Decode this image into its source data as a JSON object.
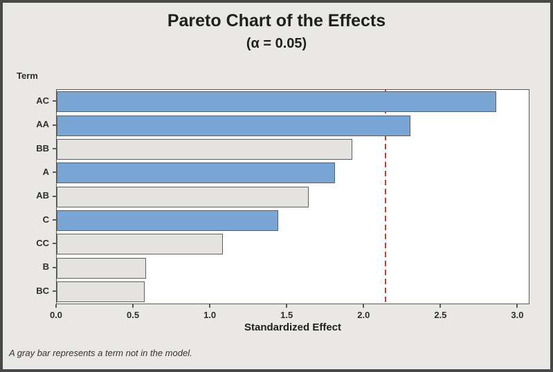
{
  "title": "Pareto Chart of the Effects",
  "subtitle": "(α = 0.05)",
  "axes": {
    "y_title": "Term",
    "x_title": "Standardized Effect"
  },
  "footnote": "A gray bar represents a term not in the model.",
  "colors": {
    "background": "#e9e8e5",
    "frame_border": "#484848",
    "plot_background": "#ffffff",
    "plot_border": "#595959",
    "bar_in_model": "#7aa6d6",
    "bar_not_in_model": "#e4e3e0",
    "bar_border": "#5e5e5e",
    "reference_line": "#d2392b",
    "text": "#212121"
  },
  "chart_data": {
    "type": "bar",
    "orientation": "horizontal",
    "title": "Pareto Chart of the Effects",
    "subtitle": "(α = 0.05)",
    "alpha": 0.05,
    "xlabel": "Standardized Effect",
    "ylabel": "Term",
    "categories": [
      "AC",
      "AA",
      "BB",
      "A",
      "AB",
      "C",
      "CC",
      "B",
      "BC"
    ],
    "values": [
      2.86,
      2.3,
      1.92,
      1.81,
      1.64,
      1.44,
      1.08,
      0.58,
      0.57
    ],
    "in_model": [
      true,
      true,
      false,
      true,
      false,
      true,
      false,
      false,
      false
    ],
    "reference_line": 2.14,
    "x_ticks": [
      0.0,
      0.5,
      1.0,
      1.5,
      2.0,
      2.5,
      3.0
    ],
    "xlim": [
      0,
      3.07
    ],
    "grid": false,
    "legend_note": "A gray bar represents a term not in the model."
  }
}
